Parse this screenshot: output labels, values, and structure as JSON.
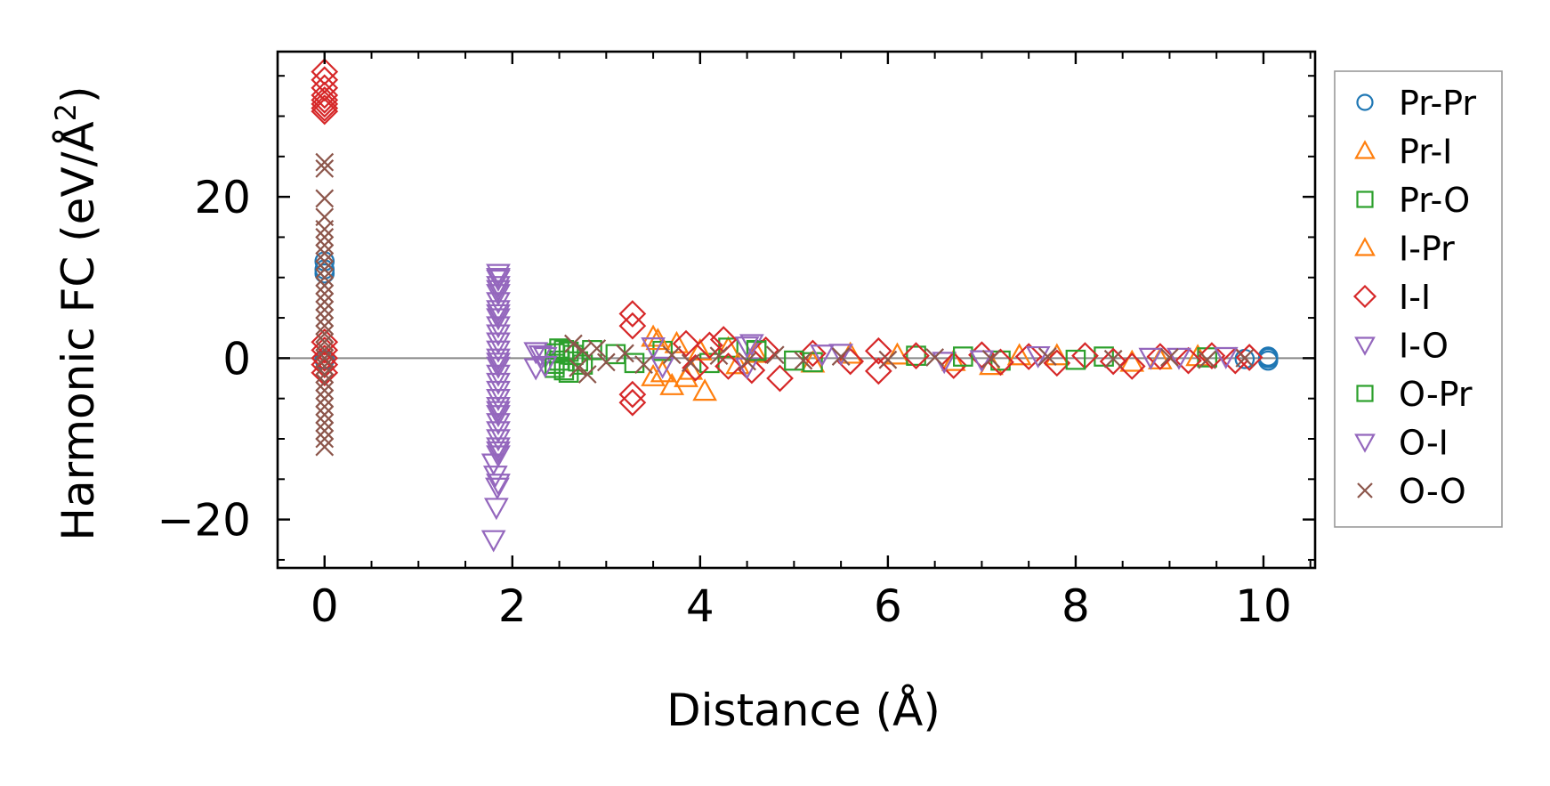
{
  "chart_data": {
    "type": "scatter",
    "title": "",
    "xlabel": "Distance (Å)",
    "ylabel": "Harmonic FC (eV/Å",
    "ylabel_superscript": "2",
    "ylabel_close": ")",
    "xlim": [
      -0.5,
      10.55
    ],
    "ylim": [
      -26,
      38
    ],
    "xticks": [
      0,
      2,
      4,
      6,
      8,
      10
    ],
    "xtick_labels": [
      "0",
      "2",
      "4",
      "6",
      "8",
      "10"
    ],
    "yticks": [
      -20,
      0,
      20
    ],
    "ytick_labels": [
      "−20",
      "0",
      "20"
    ],
    "reference_line_y": 0,
    "legend_position": "outside-right",
    "series": [
      {
        "name": "Pr-Pr",
        "marker": "circle",
        "color": "#1f77b4",
        "points": [
          [
            0,
            12
          ],
          [
            0,
            11
          ],
          [
            0,
            10.5
          ],
          [
            10.05,
            0
          ],
          [
            10.05,
            -0.3
          ],
          [
            10.05,
            0.2
          ],
          [
            9.8,
            -0.1
          ],
          [
            0,
            -0.2
          ]
        ]
      },
      {
        "name": "Pr-I",
        "marker": "triangle-up",
        "color": "#ff7f0e",
        "points": [
          [
            3.5,
            2.6
          ],
          [
            3.5,
            -2.3
          ],
          [
            3.7,
            -3.4
          ],
          [
            3.75,
            1.8
          ],
          [
            4.05,
            -4.1
          ],
          [
            3.9,
            -1.5
          ],
          [
            4.3,
            1.2
          ],
          [
            4.6,
            0.6
          ],
          [
            5.2,
            -0.6
          ],
          [
            6.1,
            0.4
          ],
          [
            7.1,
            -0.9
          ],
          [
            7.8,
            0.3
          ],
          [
            8.6,
            -0.5
          ],
          [
            9.3,
            0.2
          ]
        ]
      },
      {
        "name": "Pr-O",
        "marker": "square",
        "color": "#2ca02c",
        "points": [
          [
            2.45,
            -1.2
          ],
          [
            2.45,
            0.6
          ],
          [
            2.5,
            -0.3
          ],
          [
            2.55,
            1.0
          ],
          [
            2.6,
            -1.8
          ],
          [
            2.65,
            0.4
          ],
          [
            2.75,
            -0.8
          ],
          [
            3.1,
            0.5
          ],
          [
            3.6,
            0.9
          ],
          [
            4.1,
            -0.6
          ],
          [
            4.3,
            1.3
          ],
          [
            4.6,
            1.0
          ],
          [
            5.2,
            -0.5
          ],
          [
            6.3,
            0.3
          ],
          [
            7.2,
            -0.3
          ],
          [
            8.3,
            0.2
          ],
          [
            9.4,
            0.1
          ]
        ]
      },
      {
        "name": "I-Pr",
        "marker": "triangle-up",
        "color": "#ff7f0e",
        "points": [
          [
            3.55,
            2.2
          ],
          [
            3.6,
            -1.8
          ],
          [
            3.85,
            -2.4
          ],
          [
            4.0,
            0.9
          ],
          [
            4.4,
            -0.8
          ],
          [
            5.6,
            0.5
          ],
          [
            6.7,
            -0.4
          ],
          [
            7.4,
            0.3
          ],
          [
            8.9,
            -0.2
          ]
        ]
      },
      {
        "name": "I-I",
        "marker": "diamond",
        "color": "#d62728",
        "points": [
          [
            0,
            35.5
          ],
          [
            0,
            34.5
          ],
          [
            0,
            33.5
          ],
          [
            0,
            32.6
          ],
          [
            0,
            32
          ],
          [
            0,
            31.5
          ],
          [
            0,
            31
          ],
          [
            0,
            30.6
          ],
          [
            0,
            2
          ],
          [
            0,
            1
          ],
          [
            0,
            0
          ],
          [
            0,
            -0.8
          ],
          [
            0,
            -1.8
          ],
          [
            3.28,
            5.5
          ],
          [
            3.28,
            4
          ],
          [
            3.28,
            -4.5
          ],
          [
            3.28,
            -5.5
          ],
          [
            3.85,
            1.8
          ],
          [
            3.95,
            -1.2
          ],
          [
            4.1,
            1.6
          ],
          [
            4.25,
            2.3
          ],
          [
            4.3,
            -1.0
          ],
          [
            4.55,
            -1.5
          ],
          [
            4.7,
            1.0
          ],
          [
            4.85,
            -2.5
          ],
          [
            5.2,
            0.6
          ],
          [
            5.6,
            -0.4
          ],
          [
            5.9,
            0.9
          ],
          [
            5.9,
            -1.6
          ],
          [
            6.3,
            0.3
          ],
          [
            6.7,
            -0.9
          ],
          [
            7.0,
            0.4
          ],
          [
            7.2,
            -0.5
          ],
          [
            7.5,
            0.2
          ],
          [
            7.8,
            -0.6
          ],
          [
            8.1,
            0.3
          ],
          [
            8.4,
            -0.4
          ],
          [
            8.6,
            -1.0
          ],
          [
            8.9,
            0.2
          ],
          [
            9.2,
            -0.3
          ],
          [
            9.45,
            0.3
          ],
          [
            9.7,
            -0.3
          ],
          [
            9.85,
            0.1
          ]
        ]
      },
      {
        "name": "I-O",
        "marker": "triangle-down",
        "color": "#9467bd",
        "points": [
          [
            1.85,
            10.5
          ],
          [
            1.85,
            9.8
          ],
          [
            1.85,
            9
          ],
          [
            1.85,
            8
          ],
          [
            1.85,
            7
          ],
          [
            1.85,
            6
          ],
          [
            1.85,
            5
          ],
          [
            1.85,
            4
          ],
          [
            1.85,
            3
          ],
          [
            1.85,
            2
          ],
          [
            1.85,
            1
          ],
          [
            1.85,
            0
          ],
          [
            1.85,
            -1
          ],
          [
            1.85,
            -2
          ],
          [
            1.85,
            -3
          ],
          [
            1.85,
            -4
          ],
          [
            1.85,
            -5
          ],
          [
            1.85,
            -6
          ],
          [
            1.85,
            -7
          ],
          [
            1.85,
            -8
          ],
          [
            1.85,
            -9
          ],
          [
            1.85,
            -10
          ],
          [
            1.85,
            -11
          ],
          [
            1.85,
            -12
          ],
          [
            1.8,
            -13
          ],
          [
            1.82,
            -14.5
          ],
          [
            1.85,
            -15.5
          ],
          [
            1.84,
            -16
          ],
          [
            1.83,
            -18.5
          ],
          [
            1.8,
            -22.5
          ],
          [
            2.25,
            0.8
          ],
          [
            2.25,
            -1.2
          ],
          [
            2.35,
            0.2
          ],
          [
            3.5,
            1.4
          ],
          [
            4.5,
            -1.1
          ],
          [
            4.55,
            1.8
          ],
          [
            5.5,
            0.6
          ],
          [
            6.6,
            -0.4
          ],
          [
            7.6,
            0.3
          ],
          [
            8.8,
            0.1
          ],
          [
            9.6,
            0.2
          ]
        ]
      },
      {
        "name": "O-Pr",
        "marker": "square",
        "color": "#2ca02c",
        "points": [
          [
            2.45,
            -0.7
          ],
          [
            2.5,
            1.2
          ],
          [
            2.55,
            -1.5
          ],
          [
            2.6,
            0.8
          ],
          [
            2.7,
            -0.4
          ],
          [
            2.85,
            1.0
          ],
          [
            3.3,
            -0.6
          ],
          [
            4.6,
            0.9
          ],
          [
            5.0,
            -0.3
          ],
          [
            6.8,
            0.2
          ],
          [
            8.0,
            -0.2
          ]
        ]
      },
      {
        "name": "O-I",
        "marker": "triangle-down",
        "color": "#9467bd",
        "points": [
          [
            1.85,
            10
          ],
          [
            1.85,
            8.5
          ],
          [
            1.85,
            5.5
          ],
          [
            1.85,
            -0.5
          ],
          [
            1.85,
            -6.5
          ],
          [
            1.85,
            -11.5
          ],
          [
            2.3,
            0.4
          ],
          [
            2.35,
            -0.9
          ],
          [
            3.6,
            -1.0
          ],
          [
            4.5,
            1.5
          ],
          [
            5.3,
            0.5
          ],
          [
            7.0,
            -0.2
          ],
          [
            9.1,
            0.1
          ]
        ]
      },
      {
        "name": "O-O",
        "marker": "x",
        "color": "#8c564b",
        "points": [
          [
            0,
            24.3
          ],
          [
            0,
            23.5
          ],
          [
            0,
            19.8
          ],
          [
            0,
            17.5
          ],
          [
            0,
            16
          ],
          [
            0,
            15
          ],
          [
            0,
            14
          ],
          [
            0,
            13
          ],
          [
            0,
            12
          ],
          [
            0,
            11
          ],
          [
            0,
            10
          ],
          [
            0,
            9
          ],
          [
            0,
            8
          ],
          [
            0,
            7
          ],
          [
            0,
            6
          ],
          [
            0,
            5
          ],
          [
            0,
            4
          ],
          [
            0,
            3
          ],
          [
            0,
            2
          ],
          [
            0,
            1
          ],
          [
            0,
            0
          ],
          [
            0,
            -1
          ],
          [
            0,
            -2
          ],
          [
            0,
            -3
          ],
          [
            0,
            -4
          ],
          [
            0,
            -5
          ],
          [
            0,
            -6
          ],
          [
            0,
            -7
          ],
          [
            0,
            -8
          ],
          [
            0,
            -9
          ],
          [
            0,
            -10
          ],
          [
            0,
            -11
          ],
          [
            2.65,
            1.8
          ],
          [
            2.7,
            -1.2
          ],
          [
            2.75,
            0.9
          ],
          [
            2.8,
            -2.0
          ],
          [
            2.9,
            1.2
          ],
          [
            3.0,
            -0.5
          ],
          [
            3.2,
            0.6
          ],
          [
            3.4,
            -0.8
          ],
          [
            3.7,
            0.4
          ],
          [
            3.9,
            -0.6
          ],
          [
            4.2,
            0.3
          ],
          [
            4.5,
            -0.4
          ],
          [
            4.8,
            0.4
          ],
          [
            5.1,
            -0.3
          ],
          [
            5.5,
            0.2
          ],
          [
            6.0,
            -0.2
          ],
          [
            6.5,
            0.1
          ],
          [
            7.1,
            -0.1
          ],
          [
            7.7,
            0.2
          ],
          [
            8.4,
            -0.1
          ],
          [
            9.0,
            0.1
          ],
          [
            9.4,
            -0.2
          ],
          [
            9.8,
            0
          ]
        ]
      }
    ]
  }
}
